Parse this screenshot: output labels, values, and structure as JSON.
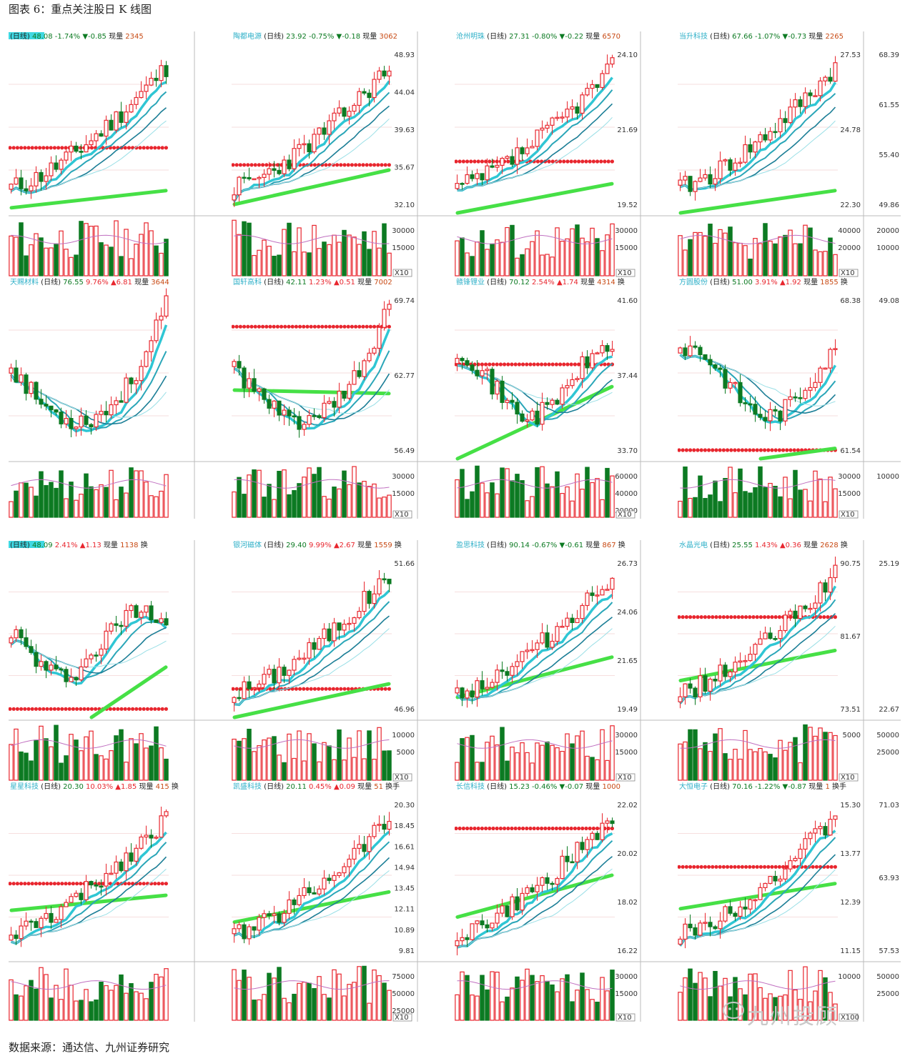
{
  "figure": {
    "title": "图表 6：重点关注股日 K 线图",
    "source": "数据来源：通达信、九州证券研究",
    "watermark": "九州投顾"
  },
  "colors": {
    "up": "#e8262e",
    "down": "#0c7a22",
    "ma1": "#2fc6d4",
    "ma2": "#2aa6b8",
    "ma3": "#1c7e96",
    "ma_long": "#46e046",
    "resist": "#e8262e",
    "grid": "#f2bcbc"
  },
  "chart_data": [
    {
      "type": "candlestick",
      "name": "",
      "header": {
        "cycle": "(日线)",
        "price": "48.08",
        "pct": "-1.74%",
        "chg": "▼-0.85",
        "vol_label": "现量",
        "vol": "2345"
      },
      "price_ticks": [],
      "volume_ticks": [],
      "vol_unit": "",
      "trend": "up",
      "resist_level": 0.38,
      "green_line": [
        0.03,
        0.13
      ],
      "seed": 11
    },
    {
      "type": "candlestick",
      "name": "陶都电源",
      "header": {
        "cycle": "(日线)",
        "price": "23.92",
        "pct": "-0.75%",
        "chg": "▼-0.18",
        "vol_label": "现量",
        "vol": "3062"
      },
      "price_ticks": [
        "48.93",
        "44.04",
        "39.63",
        "35.67",
        "32.10"
      ],
      "volume_ticks": [
        "30000",
        "15000"
      ],
      "vol_unit": "X10",
      "trend": "up",
      "resist_level": 0.28,
      "green_line": [
        0.05,
        0.25
      ],
      "seed": 23
    },
    {
      "type": "candlestick",
      "name": "沧州明珠",
      "header": {
        "cycle": "(日线)",
        "price": "27.31",
        "pct": "-0.80%",
        "chg": "▼-0.22",
        "vol_label": "现量",
        "vol": "6570"
      },
      "price_ticks": [
        "24.10",
        "21.69",
        "19.52"
      ],
      "volume_ticks": [
        "30000",
        "15000"
      ],
      "vol_unit": "X10",
      "trend": "up",
      "resist_level": 0.3,
      "green_line": [
        0.0,
        0.17
      ],
      "seed": 37
    },
    {
      "type": "candlestick",
      "name": "当升科技",
      "header": {
        "cycle": "(日线)",
        "price": "67.66",
        "pct": "-1.07%",
        "chg": "▼-0.73",
        "vol_label": "现量",
        "vol": "2265"
      },
      "price_ticks": [
        "27.53",
        "24.78",
        "22.30"
      ],
      "volume_ticks": [
        "40000",
        "20000"
      ],
      "vol_unit": "X10",
      "trend": "up",
      "resist_level": -1,
      "green_line": [
        0.0,
        0.13
      ],
      "seed": 41,
      "right_ticks": [
        "68.39",
        "61.55",
        "55.40",
        "49.86"
      ],
      "right_vol_ticks": [
        "20000",
        "10000"
      ]
    },
    {
      "type": "candlestick",
      "name": "天赐材料",
      "header": {
        "cycle": "(日线)",
        "price": "76.55",
        "pct": "9.76%",
        "chg": "▲6.81",
        "vol_label": "现量",
        "vol": "3644"
      },
      "price_ticks": [],
      "volume_ticks": [],
      "vol_unit": "",
      "trend": "vshape",
      "resist_level": -1,
      "green_line": [
        -1,
        -1
      ],
      "seed": 53
    },
    {
      "type": "candlestick",
      "name": "国轩高科",
      "header": {
        "cycle": "(日线)",
        "price": "42.11",
        "pct": "1.23%",
        "chg": "▲0.51",
        "vol_label": "现量",
        "vol": "7002"
      },
      "price_ticks": [
        "69.74",
        "62.77",
        "56.49"
      ],
      "volume_ticks": [
        "30000",
        "15000"
      ],
      "vol_unit": "X10",
      "trend": "vshape",
      "resist_level": 0.77,
      "green_line": [
        0.4,
        0.38
      ],
      "seed": 61
    },
    {
      "type": "candlestick",
      "name": "赣锋锂业",
      "header": {
        "cycle": "(日线)",
        "price": "70.12",
        "pct": "2.54%",
        "chg": "▲1.74",
        "vol_label": "现量",
        "vol": "4314",
        "tail": "换"
      },
      "price_ticks": [
        "41.60",
        "37.44",
        "33.70"
      ],
      "volume_ticks": [
        "60000",
        "40000",
        "20000"
      ],
      "vol_unit": "X10",
      "trend": "flat",
      "resist_level": 0.55,
      "green_line": [
        0.0,
        0.42
      ],
      "seed": 71
    },
    {
      "type": "candlestick",
      "name": "方圆股份",
      "header": {
        "cycle": "(日线)",
        "price": "51.00",
        "pct": "3.91%",
        "chg": "▲1.92",
        "vol_label": "现量",
        "vol": "1855",
        "tail": "换"
      },
      "price_ticks": [
        "68.38",
        "61.54"
      ],
      "volume_ticks": [
        "30000",
        "15000"
      ],
      "vol_unit": "X10",
      "trend": "flat",
      "resist_level": 0.05,
      "green_line": [
        -1,
        0.06
      ],
      "seed": 83,
      "right_ticks": [
        "49.08"
      ],
      "right_vol_ticks": [
        "10000"
      ]
    },
    {
      "type": "candlestick",
      "name": "",
      "header": {
        "cycle": "(日线)",
        "price": "48.09",
        "pct": "2.41%",
        "chg": "▲1.13",
        "vol_label": "现量",
        "vol": "1138",
        "tail": "换"
      },
      "price_ticks": [],
      "volume_ticks": [],
      "vol_unit": "",
      "trend": "flat",
      "resist_level": 0.05,
      "green_line": [
        -1,
        0.3
      ],
      "seed": 97
    },
    {
      "type": "candlestick",
      "name": "银河磁体",
      "header": {
        "cycle": "(日线)",
        "price": "29.40",
        "pct": "9.99%",
        "chg": "▲2.67",
        "vol_label": "现量",
        "vol": "1559",
        "tail": "换"
      },
      "price_ticks": [
        "51.66",
        "46.96"
      ],
      "volume_ticks": [
        "10000",
        "5000"
      ],
      "vol_unit": "X10",
      "trend": "up",
      "resist_level": 0.17,
      "green_line": [
        0.0,
        0.2
      ],
      "seed": 101
    },
    {
      "type": "candlestick",
      "name": "盈思科技",
      "header": {
        "cycle": "(日线)",
        "price": "90.14",
        "pct": "-0.67%",
        "chg": "▼-0.61",
        "vol_label": "现量",
        "vol": "867",
        "tail": "换"
      },
      "price_ticks": [
        "26.73",
        "24.06",
        "21.65",
        "19.49"
      ],
      "volume_ticks": [
        "30000",
        "15000"
      ],
      "vol_unit": "X10",
      "trend": "up",
      "resist_level": -1,
      "green_line": [
        0.12,
        0.36
      ],
      "seed": 113
    },
    {
      "type": "candlestick",
      "name": "水晶光电",
      "header": {
        "cycle": "(日线)",
        "price": "25.55",
        "pct": "1.43%",
        "chg": "▲0.36",
        "vol_label": "现量",
        "vol": "2628",
        "tail": "换"
      },
      "price_ticks": [
        "90.75",
        "81.67",
        "73.51"
      ],
      "volume_ticks": [
        "5000"
      ],
      "vol_unit": "X10",
      "trend": "up",
      "resist_level": 0.6,
      "green_line": [
        0.22,
        0.4
      ],
      "seed": 127,
      "right_ticks": [
        "25.19",
        "22.67"
      ],
      "right_vol_ticks": [
        "50000",
        "25000"
      ]
    },
    {
      "type": "candlestick",
      "name": "星星科技",
      "header": {
        "cycle": "(日线)",
        "price": "20.30",
        "pct": "10.03%",
        "chg": "▲1.85",
        "vol_label": "现量",
        "vol": "415",
        "tail": "换"
      },
      "price_ticks": [],
      "volume_ticks": [],
      "vol_unit": "",
      "trend": "up",
      "resist_level": 0.45,
      "green_line": [
        0.29,
        0.38
      ],
      "seed": 131
    },
    {
      "type": "candlestick",
      "name": "凯盛科技",
      "header": {
        "cycle": "(日线)",
        "price": "20.11",
        "pct": "0.45%",
        "chg": "▲0.09",
        "vol_label": "现量",
        "vol": "51",
        "tail": "换手"
      },
      "price_ticks": [
        "20.30",
        "18.45",
        "16.61",
        "14.94",
        "13.45",
        "12.11",
        "10.89",
        "9.81"
      ],
      "volume_ticks": [
        "75000",
        "50000",
        "25000"
      ],
      "vol_unit": "X10",
      "trend": "up",
      "resist_level": -1,
      "green_line": [
        0.22,
        0.4
      ],
      "seed": 139
    },
    {
      "type": "candlestick",
      "name": "长信科技",
      "header": {
        "cycle": "(日线)",
        "price": "15.23",
        "pct": "-0.46%",
        "chg": "▼-0.07",
        "vol_label": "现量",
        "vol": "1000"
      },
      "price_ticks": [
        "22.02",
        "20.02",
        "18.02",
        "16.22"
      ],
      "volume_ticks": [
        "30000",
        "15000"
      ],
      "vol_unit": "X10",
      "trend": "up",
      "resist_level": 0.78,
      "green_line": [
        0.25,
        0.5
      ],
      "seed": 149
    },
    {
      "type": "candlestick",
      "name": "大恒电子",
      "header": {
        "cycle": "(日线)",
        "price": "70.16",
        "pct": "-1.22%",
        "chg": "▼-0.87",
        "vol_label": "现量",
        "vol": "1",
        "tail": "换手"
      },
      "price_ticks": [
        "15.30",
        "13.77",
        "12.39",
        "11.15"
      ],
      "volume_ticks": [
        "10000"
      ],
      "vol_unit": "X100",
      "trend": "up",
      "resist_level": 0.55,
      "green_line": [
        0.3,
        0.45
      ],
      "seed": 151,
      "right_ticks": [
        "71.03",
        "63.93",
        "57.53"
      ],
      "right_vol_ticks": [
        "50000",
        "25000"
      ]
    }
  ]
}
